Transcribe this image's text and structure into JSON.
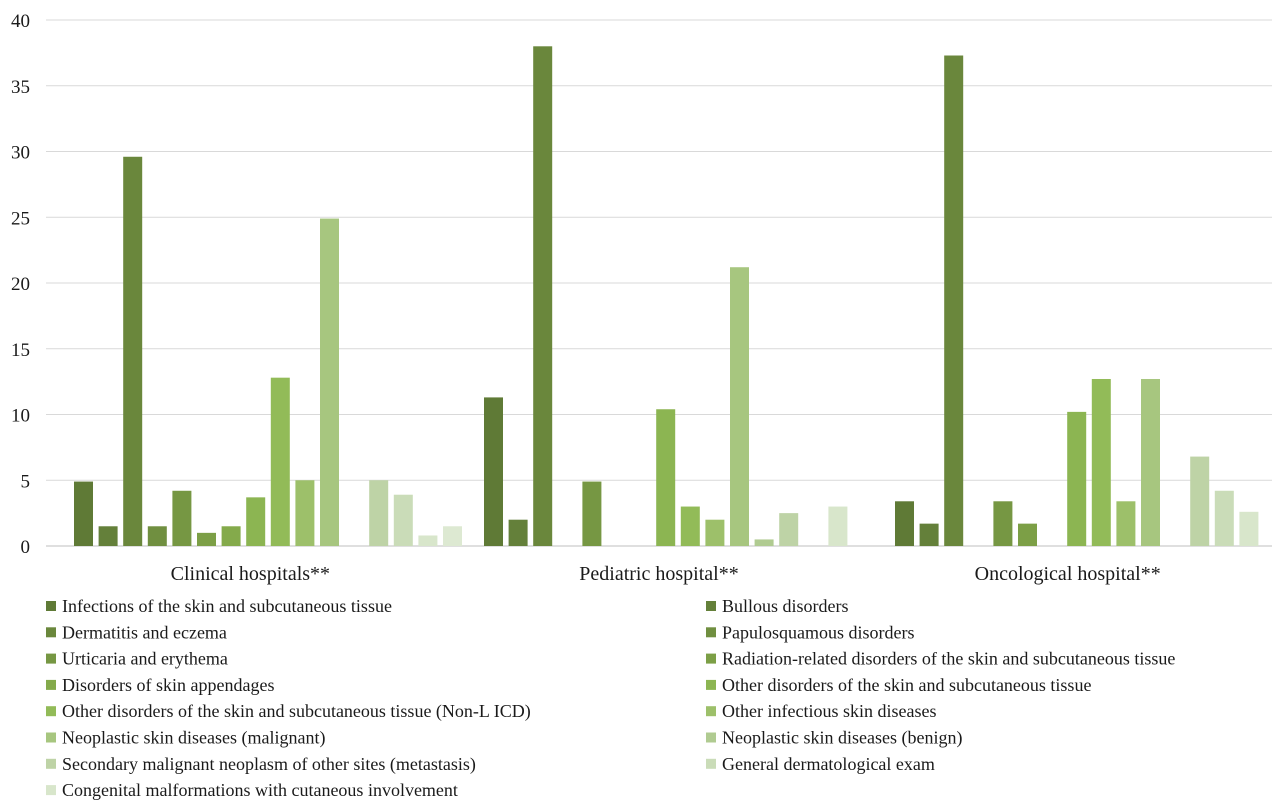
{
  "chart_data": {
    "type": "bar",
    "title": "",
    "xlabel": "",
    "ylabel": "",
    "ylim": [
      0,
      40
    ],
    "yticks": [
      0,
      5,
      10,
      15,
      20,
      25,
      30,
      35,
      40
    ],
    "grid": true,
    "legend_position": "bottom",
    "categories": [
      "Clinical hospitals**",
      "Pediatric hospital**",
      "Oncological hospital**"
    ],
    "series": [
      {
        "name": "Infections of the skin and subcutaneous tissue",
        "color": "#5f7a36",
        "values": [
          4.9,
          11.3,
          3.4
        ]
      },
      {
        "name": "Bullous disorders",
        "color": "#64803a",
        "values": [
          1.5,
          2.0,
          1.7
        ]
      },
      {
        "name": "Dermatitis and eczema",
        "color": "#6a873c",
        "values": [
          29.6,
          38.0,
          37.3
        ]
      },
      {
        "name": "Papulosquamous disorders",
        "color": "#708f40",
        "values": [
          1.5,
          0,
          0
        ]
      },
      {
        "name": "Urticaria and erythema",
        "color": "#769743",
        "values": [
          4.2,
          4.9,
          3.4
        ]
      },
      {
        "name": "Radiation-related disorders of the skin and subcutaneous tissue",
        "color": "#7c9f46",
        "values": [
          1.0,
          0,
          1.7
        ]
      },
      {
        "name": "Disorders of skin appendages",
        "color": "#84aa4b",
        "values": [
          1.5,
          0,
          0
        ]
      },
      {
        "name": "Other disorders of the skin and subcutaneous tissue",
        "color": "#8cb552",
        "values": [
          3.7,
          10.4,
          10.2
        ]
      },
      {
        "name": "Other disorders of the skin and subcutaneous tissue (Non-L ICD)",
        "color": "#92bb58",
        "values": [
          12.8,
          3.0,
          12.7
        ]
      },
      {
        "name": "Other infectious skin diseases",
        "color": "#9dc06a",
        "values": [
          5.0,
          2.0,
          3.4
        ]
      },
      {
        "name": "Neoplastic skin diseases (malignant)",
        "color": "#a7c67f",
        "values": [
          24.9,
          21.2,
          12.7
        ]
      },
      {
        "name": "Neoplastic skin diseases (benign)",
        "color": "#b0cb91",
        "values": [
          0,
          0.5,
          0
        ]
      },
      {
        "name": "Secondary malignant neoplasm of other sites (metastasis)",
        "color": "#bed3a6",
        "values": [
          5.0,
          2.5,
          6.8
        ]
      },
      {
        "name": "General dermatological exam",
        "color": "#cadcb8",
        "values": [
          3.9,
          0,
          4.2
        ]
      },
      {
        "name": "Congenital malformations with cutaneous involvement",
        "color": "#d8e6cb",
        "values": [
          0.8,
          3.0,
          2.6
        ]
      }
    ],
    "extra_bars": [
      {
        "category_index": 0,
        "value": 1.5,
        "color": "#dde9d2"
      }
    ]
  }
}
